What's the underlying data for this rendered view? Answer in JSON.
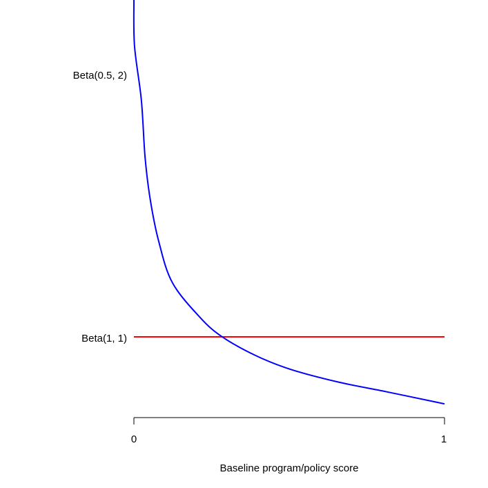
{
  "chart_data": {
    "type": "line",
    "title": "",
    "xlabel": "Baseline program/policy score",
    "ylabel": "",
    "xlim": [
      0,
      1
    ],
    "ylim": [
      0,
      5.17
    ],
    "x_ticks": [
      "0",
      "1"
    ],
    "grid": false,
    "series": [
      {
        "name": "Beta(0.5, 2)",
        "color": "#0000ff",
        "x": [
          0.0,
          0.002,
          0.024,
          0.036,
          0.053,
          0.08,
          0.124,
          0.213,
          0.284,
          0.391,
          0.502,
          0.658,
          0.813,
          1.0
        ],
        "y": [
          5.17,
          4.6,
          3.93,
          3.22,
          2.69,
          2.18,
          1.67,
          1.24,
          1.0,
          0.77,
          0.6,
          0.44,
          0.32,
          0.17
        ]
      },
      {
        "name": "Beta(1, 1)",
        "color": "#ff0000",
        "x": [
          0.0,
          1.0
        ],
        "y": [
          1.0,
          1.0
        ]
      }
    ]
  }
}
